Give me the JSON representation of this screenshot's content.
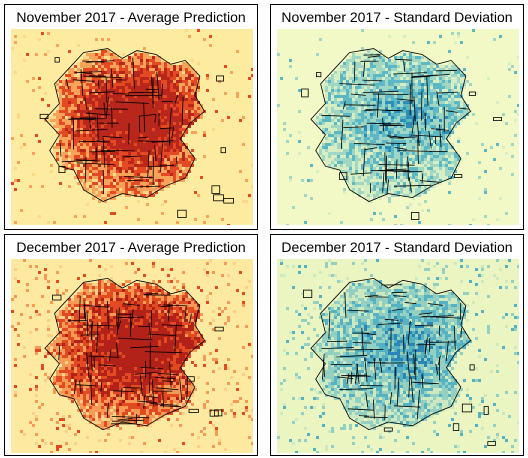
{
  "panels": [
    {
      "title": "November 2017 - Average Prediction",
      "map_type": "average-prediction",
      "colors": {
        "background": "#fdeba0",
        "low": "#fcd98a",
        "mid": "#f8a35a",
        "high": "#e34a23",
        "peak": "#b8261c",
        "boundary": "#000000"
      }
    },
    {
      "title": "November 2017 - Standard Deviation",
      "map_type": "standard-deviation",
      "colors": {
        "background": "#f2f8c6",
        "low": "#d6eec2",
        "mid": "#9fd6c4",
        "high": "#5cb8c4",
        "peak": "#2c8fb8",
        "boundary": "#000000"
      }
    },
    {
      "title": "December 2017 - Average Prediction",
      "map_type": "average-prediction",
      "colors": {
        "background": "#fdeaa0",
        "low": "#fbd088",
        "mid": "#f79a55",
        "high": "#e24a22",
        "peak": "#b32218",
        "boundary": "#000000"
      }
    },
    {
      "title": "December 2017 - Standard Deviation",
      "map_type": "standard-deviation",
      "colors": {
        "background": "#eaf5c2",
        "low": "#cde9c0",
        "mid": "#94d0c2",
        "high": "#55b2c2",
        "peak": "#2a86b4",
        "boundary": "#000000"
      }
    }
  ]
}
